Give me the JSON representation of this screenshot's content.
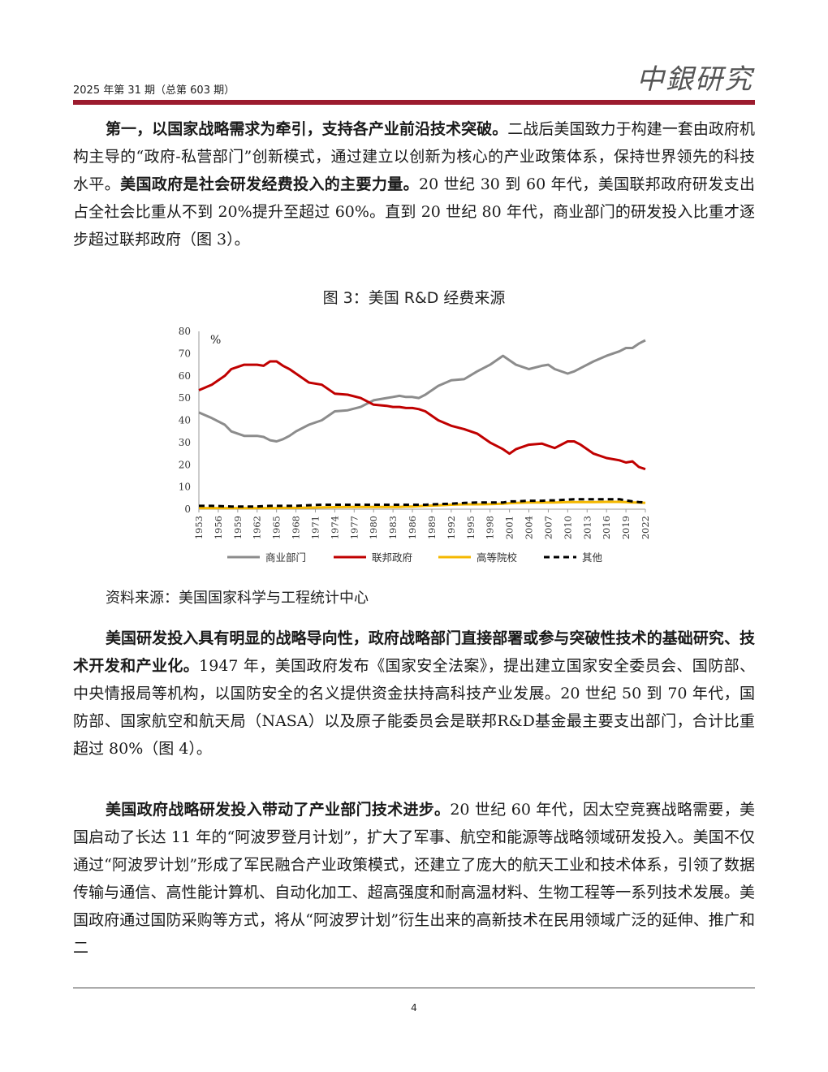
{
  "header": {
    "issue": "2025 年第 31 期（总第 603 期）",
    "logo": "中銀研究"
  },
  "para1": {
    "bold_lead": "第一，以国家战略需求为牵引，支持各产业前沿技术突破。",
    "text1": "二战后美国致力于构建一套由政府机构主导的“政府-私营部门”创新模式，通过建立以创新为核心的产业政策体系，保持世界领先的科技水平。",
    "bold_mid": "美国政府是社会研发经费投入的主要力量。",
    "text2": "20 世纪 30 到 60 年代，美国联邦政府研发支出占全社会比重从不到 20%提升至超过 60%。直到 20 世纪 80 年代，商业部门的研发投入比重才逐步超过联邦政府（图 3）。"
  },
  "figure": {
    "title": "图 3：美国 R&D 经费来源",
    "source": "资料来源：美国国家科学与工程统计中心"
  },
  "chart_data": {
    "type": "line",
    "title": "",
    "ylabel": "%",
    "ylim": [
      0,
      80
    ],
    "yticks": [
      0,
      10,
      20,
      30,
      40,
      50,
      60,
      70,
      80
    ],
    "xticks": [
      1953,
      1956,
      1959,
      1962,
      1965,
      1968,
      1971,
      1974,
      1977,
      1980,
      1983,
      1986,
      1989,
      1992,
      1995,
      1998,
      2001,
      2004,
      2007,
      2010,
      2013,
      2016,
      2019,
      2022
    ],
    "x": [
      1953,
      1955,
      1957,
      1958,
      1959,
      1960,
      1961,
      1962,
      1963,
      1964,
      1965,
      1966,
      1967,
      1968,
      1970,
      1972,
      1974,
      1976,
      1978,
      1980,
      1982,
      1983,
      1984,
      1985,
      1986,
      1987,
      1988,
      1990,
      1992,
      1994,
      1996,
      1998,
      2000,
      2001,
      2002,
      2004,
      2006,
      2007,
      2008,
      2010,
      2011,
      2012,
      2014,
      2016,
      2018,
      2019,
      2020,
      2021,
      2022
    ],
    "grid": false,
    "legend_position": "bottom",
    "series": [
      {
        "name": "商业部门",
        "color": "#8c8c8c",
        "style": "solid",
        "values": [
          43.5,
          41,
          38,
          35,
          34,
          33,
          33,
          33,
          32.5,
          31,
          30.5,
          31.5,
          33,
          35,
          38,
          40,
          44,
          44.5,
          46,
          49,
          50,
          50.5,
          51,
          50.5,
          50.5,
          50,
          51.5,
          55.5,
          58,
          58.5,
          62,
          65,
          69,
          67,
          65,
          63,
          64.5,
          65,
          63,
          61,
          62,
          63.5,
          66.5,
          69,
          71,
          72.5,
          72.5,
          74.5,
          76
        ]
      },
      {
        "name": "联邦政府",
        "color": "#c00000",
        "style": "solid",
        "values": [
          53.5,
          56,
          60,
          63,
          64,
          65,
          65,
          65,
          64.5,
          66.5,
          66.5,
          64.5,
          63,
          61,
          57,
          56,
          52,
          51.5,
          50,
          47,
          46.5,
          46,
          46,
          45.5,
          45.5,
          45,
          44,
          40,
          37.5,
          36,
          34,
          30,
          27,
          25,
          27,
          29,
          29.5,
          28.5,
          27.5,
          30.5,
          30.5,
          29,
          25,
          23,
          22,
          21,
          21.5,
          19,
          18
        ]
      },
      {
        "name": "高等院校",
        "color": "#f5b800",
        "style": "solid",
        "values": [
          0.5,
          0.5,
          0.5,
          0.5,
          0.5,
          0.5,
          0.5,
          0.5,
          0.5,
          0.5,
          0.5,
          0.6,
          0.6,
          0.6,
          0.7,
          0.8,
          0.9,
          1,
          1,
          1,
          1,
          1,
          1,
          1.2,
          1.2,
          1.4,
          1.5,
          1.7,
          2,
          2.2,
          2.2,
          2.3,
          2.5,
          2.7,
          2.8,
          3,
          3,
          3,
          3,
          3.2,
          3.2,
          3.2,
          3.2,
          3.3,
          3.3,
          3.2,
          3,
          3,
          2.8
        ]
      },
      {
        "name": "其他",
        "color": "#000000",
        "style": "dashed",
        "values": [
          1.5,
          1.5,
          1.3,
          1.2,
          1.2,
          1.2,
          1.2,
          1.2,
          1.4,
          1.5,
          1.5,
          1.5,
          1.5,
          1.5,
          1.8,
          2,
          2,
          2,
          2,
          2,
          2,
          2,
          2,
          2,
          2,
          2,
          2,
          2.3,
          2.5,
          2.8,
          3,
          3,
          3,
          3.5,
          3.5,
          3.8,
          3.8,
          4,
          4,
          4.3,
          4.5,
          4.5,
          4.5,
          4.5,
          4.5,
          4,
          3.5,
          3.2,
          3
        ]
      }
    ]
  },
  "para2": {
    "bold_lead": "美国研发投入具有明显的战略导向性，政府战略部门直接部署或参与突破性技术的基础研究、技术开发和产业化。",
    "text": "1947 年，美国政府发布《国家安全法案》，提出建立国家安全委员会、国防部、中央情报局等机构，以国防安全的名义提供资金扶持高科技产业发展。20 世纪 50 到 70 年代，国防部、国家航空和航天局（NASA）以及原子能委员会是联邦R&D基金最主要支出部门，合计比重超过 80%（图 4）。"
  },
  "para3": {
    "bold_lead": "美国政府战略研发投入带动了产业部门技术进步。",
    "text": "20 世纪 60 年代，因太空竞赛战略需要，美国启动了长达 11 年的“阿波罗登月计划”，扩大了军事、航空和能源等战略领域研发投入。美国不仅通过“阿波罗计划”形成了军民融合产业政策模式，还建立了庞大的航天工业和技术体系，引领了数据传输与通信、高性能计算机、自动化加工、超高强度和耐高温材料、生物工程等一系列技术发展。美国政府通过国防采购等方式，将从“阿波罗计划”衍生出来的高新技术在民用领域广泛的延伸、推广和二"
  },
  "footer": {
    "page_number": "4"
  }
}
